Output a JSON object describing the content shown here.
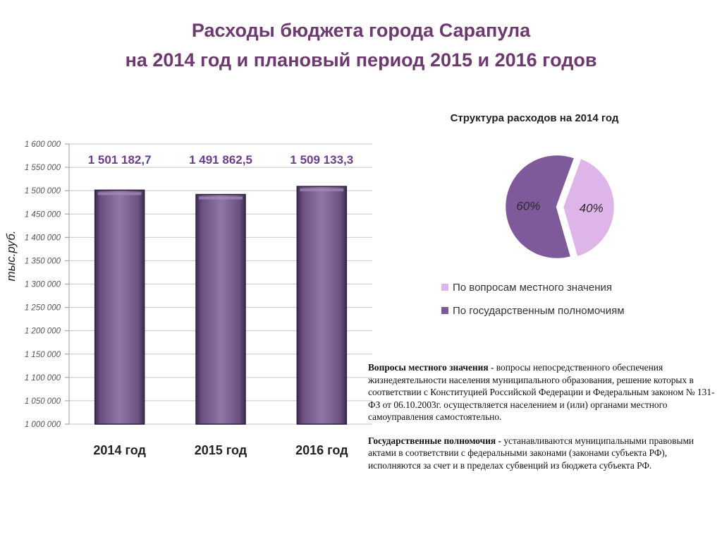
{
  "title": {
    "line1": "Расходы бюджета города Сарапула",
    "line2": "на 2014 год и плановый период 2015 и 2016 годов"
  },
  "chart_data": [
    {
      "type": "bar",
      "categories": [
        "2014 год",
        "2015 год",
        "2016 год"
      ],
      "values": [
        1501182.7,
        1491862.5,
        1509133.3
      ],
      "data_labels": [
        "1 501 182,7",
        "1 491 862,5",
        "1 509 133,3"
      ],
      "ylabel": "тыс.руб.",
      "ylim": [
        1000000,
        1600000
      ],
      "yticks": [
        1000000,
        1050000,
        1100000,
        1150000,
        1200000,
        1250000,
        1300000,
        1350000,
        1400000,
        1450000,
        1500000,
        1550000,
        1600000
      ],
      "ytick_labels": [
        "1 000 000",
        "1 050 000",
        "1 100 000",
        "1 150 000",
        "1 200 000",
        "1 250 000",
        "1 300 000",
        "1 350 000",
        "1 400 000",
        "1 450 000",
        "1 500 000",
        "1 550 000",
        "1 600 000"
      ],
      "grid": true,
      "colors": {
        "bar": "#6b5180",
        "bar_light": "#8f77a6",
        "bar_dark": "#3d2c52",
        "label": "#6a3d8f"
      }
    },
    {
      "type": "pie",
      "title": "Структура расходов на 2014 год",
      "slices": [
        {
          "label": "По вопросам местного значения",
          "value": 40,
          "text": "40%",
          "color": "#ddb5e8"
        },
        {
          "label": "По государственным полномочиям",
          "value": 60,
          "text": "60%",
          "color": "#7e5a9a"
        }
      ],
      "legend_position": "bottom"
    }
  ],
  "description": {
    "p1_term": "Вопросы местного значения",
    "p1_text": " - вопросы непосредственного обеспечения жизнедеятельности населения муниципального образования, решение которых в соответствии с Конституцией Российской Федерации и Федеральным законом № 131-ФЗ от 06.10.2003г. осуществляется населением и (или) органами местного самоуправления самостоятельно.",
    "p2_term": "Государственные полномочия -",
    "p2_text": " устанавливаются муниципальными правовыми актами в соответствии с федеральными законами (законами субъекта РФ), исполняются за счет и в пределах субвенций из бюджета субъекта РФ."
  }
}
